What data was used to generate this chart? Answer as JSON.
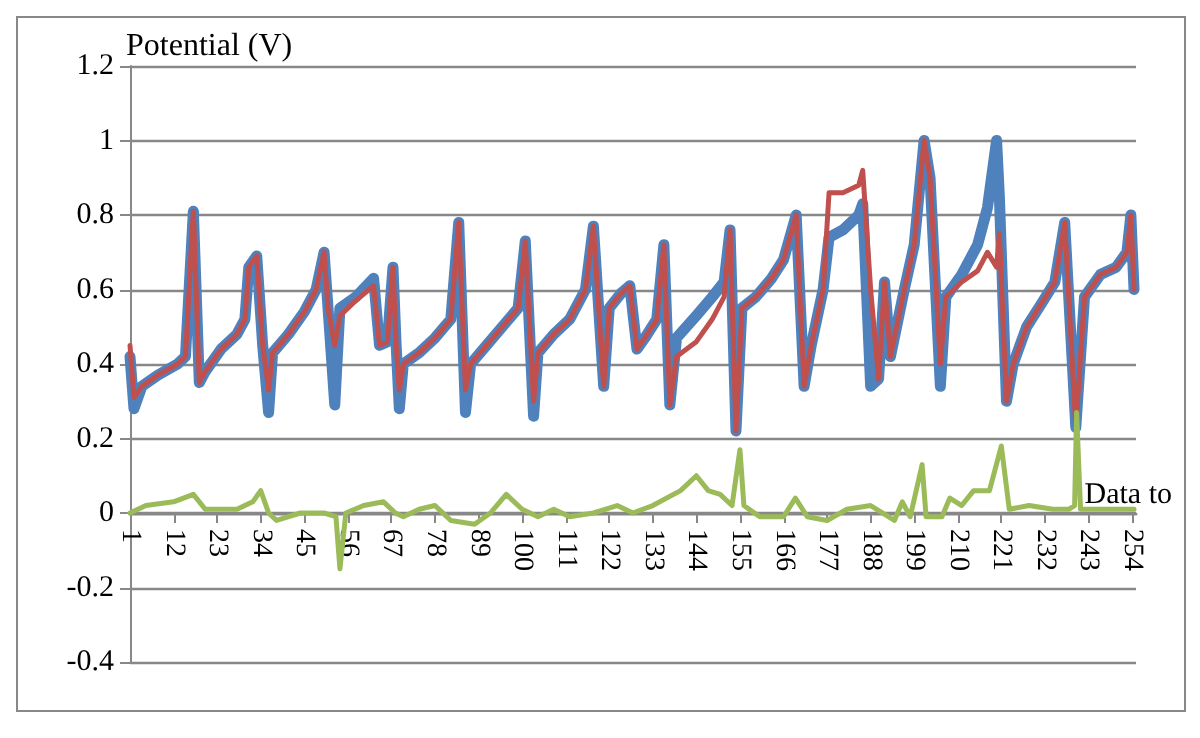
{
  "chart_data": {
    "type": "line",
    "ylabel": "Potential (V)",
    "annotations": [
      "Data to"
    ],
    "xlim": [
      1,
      255
    ],
    "xticks": [
      1,
      12,
      23,
      34,
      45,
      56,
      67,
      78,
      89,
      100,
      111,
      122,
      133,
      144,
      155,
      166,
      177,
      188,
      199,
      210,
      221,
      232,
      243,
      254
    ],
    "ylim": [
      -0.4,
      1.2
    ],
    "yticks": [
      -0.4,
      -0.2,
      0,
      0.2,
      0.4,
      0.6,
      0.8,
      1,
      1.2
    ],
    "grid": "y",
    "marker": "none",
    "line_style": "solid",
    "series": [
      {
        "color": "#4f81bd",
        "x": [
          1,
          2,
          4,
          8,
          13,
          15,
          17,
          18.5,
          20,
          24,
          28,
          30,
          31,
          33,
          34.5,
          36,
          37,
          41,
          45,
          48,
          50,
          51,
          52.7,
          54,
          58,
          62.5,
          64,
          66,
          67.4,
          68.2,
          69,
          70,
          74,
          78,
          82,
          84,
          85.7,
          87,
          91,
          95,
          99,
          100.8,
          102.9,
          104,
          108,
          112,
          116,
          118,
          120.6,
          122,
          125,
          127.2,
          129,
          131,
          134,
          135.8,
          137.3,
          139,
          144,
          148,
          151,
          152.5,
          154,
          155.5,
          159,
          163,
          166,
          169.2,
          171.2,
          173,
          176,
          177.5,
          181,
          185,
          186,
          188,
          190,
          191.5,
          193,
          196.5,
          199,
          201.5,
          203,
          205.6,
          207,
          211,
          215,
          217.5,
          219.8,
          220.5,
          222.3,
          224,
          227.4,
          231,
          234.5,
          237,
          239.8,
          242,
          246,
          250,
          252.7,
          253.7,
          254.5
        ],
        "values": [
          0.42,
          0.28,
          0.34,
          0.37,
          0.4,
          0.42,
          0.81,
          0.35,
          0.38,
          0.44,
          0.48,
          0.52,
          0.66,
          0.69,
          0.45,
          0.27,
          0.43,
          0.48,
          0.54,
          0.6,
          0.7,
          0.55,
          0.29,
          0.55,
          0.58,
          0.63,
          0.45,
          0.46,
          0.66,
          0.45,
          0.28,
          0.4,
          0.43,
          0.47,
          0.52,
          0.78,
          0.27,
          0.4,
          0.45,
          0.5,
          0.55,
          0.73,
          0.26,
          0.43,
          0.48,
          0.52,
          0.6,
          0.77,
          0.34,
          0.55,
          0.59,
          0.61,
          0.44,
          0.47,
          0.52,
          0.72,
          0.29,
          0.47,
          0.53,
          0.58,
          0.62,
          0.76,
          0.22,
          0.55,
          0.58,
          0.63,
          0.68,
          0.8,
          0.34,
          0.45,
          0.6,
          0.74,
          0.76,
          0.8,
          0.83,
          0.34,
          0.36,
          0.62,
          0.42,
          0.6,
          0.72,
          1.0,
          0.9,
          0.34,
          0.58,
          0.64,
          0.72,
          0.82,
          1.0,
          0.85,
          0.3,
          0.4,
          0.5,
          0.56,
          0.62,
          0.78,
          0.23,
          0.58,
          0.64,
          0.66,
          0.7,
          0.8,
          0.6
        ]
      },
      {
        "color": "#c0504d",
        "x": [
          1,
          2,
          4,
          8,
          13,
          15,
          17,
          18.5,
          20,
          24,
          28,
          30,
          31,
          33,
          34.5,
          36,
          37,
          41,
          45,
          48,
          50,
          51,
          52.7,
          54,
          58,
          62.5,
          64,
          66,
          67.4,
          68.2,
          69,
          70,
          74,
          78,
          82,
          84,
          85.7,
          87,
          91,
          95,
          99,
          100.8,
          102.9,
          104,
          108,
          112,
          116,
          118,
          120.6,
          122,
          125,
          127.2,
          129,
          131,
          134,
          135.8,
          137.3,
          139,
          144,
          148,
          151,
          152.5,
          154,
          155.5,
          159,
          163,
          166,
          169.2,
          171.2,
          173,
          176,
          177.5,
          181,
          185,
          186,
          188,
          190,
          191.5,
          193,
          196.5,
          199,
          201.5,
          203,
          205.6,
          207,
          211,
          215,
          217.5,
          219.8,
          220.5,
          222.3,
          224,
          227.4,
          231,
          234.5,
          237,
          239.8,
          242,
          246,
          250,
          252.7,
          253.7,
          254.5
        ],
        "values": [
          0.45,
          0.31,
          0.34,
          0.37,
          0.4,
          0.42,
          0.81,
          0.35,
          0.38,
          0.44,
          0.48,
          0.52,
          0.66,
          0.69,
          0.45,
          0.33,
          0.43,
          0.48,
          0.54,
          0.6,
          0.7,
          0.55,
          0.45,
          0.53,
          0.57,
          0.61,
          0.45,
          0.46,
          0.66,
          0.45,
          0.33,
          0.4,
          0.43,
          0.47,
          0.52,
          0.78,
          0.33,
          0.4,
          0.45,
          0.5,
          0.55,
          0.73,
          0.3,
          0.43,
          0.48,
          0.52,
          0.6,
          0.77,
          0.34,
          0.55,
          0.59,
          0.61,
          0.44,
          0.47,
          0.52,
          0.72,
          0.29,
          0.42,
          0.46,
          0.52,
          0.58,
          0.76,
          0.22,
          0.55,
          0.58,
          0.63,
          0.68,
          0.8,
          0.34,
          0.45,
          0.6,
          0.86,
          0.86,
          0.88,
          0.92,
          0.6,
          0.36,
          0.62,
          0.42,
          0.6,
          0.72,
          1.0,
          0.9,
          0.4,
          0.58,
          0.62,
          0.65,
          0.7,
          0.66,
          0.75,
          0.3,
          0.4,
          0.5,
          0.56,
          0.62,
          0.78,
          0.23,
          0.58,
          0.64,
          0.66,
          0.7,
          0.8,
          0.6
        ]
      },
      {
        "color": "#9bbb59",
        "x": [
          1,
          5,
          12,
          17,
          20,
          28,
          32,
          34,
          36,
          38,
          44,
          50,
          53,
          54,
          55.5,
          60,
          65,
          68,
          70,
          74,
          78,
          82,
          88,
          92,
          96,
          100,
          104,
          108,
          112,
          118,
          124,
          128,
          133,
          140,
          144,
          147,
          150,
          153,
          155,
          156,
          160,
          166,
          169,
          172,
          177,
          182,
          188,
          194,
          196,
          198,
          201,
          202,
          206,
          208,
          211,
          214,
          218,
          221,
          223,
          228,
          234,
          238,
          239.5,
          240,
          241,
          248,
          254.5
        ],
        "values": [
          0,
          0.02,
          0.03,
          0.05,
          0.01,
          0.01,
          0.03,
          0.06,
          0,
          -0.02,
          0,
          0,
          -0.01,
          -0.15,
          0,
          0.02,
          0.03,
          0,
          -0.01,
          0.01,
          0.02,
          -0.02,
          -0.03,
          0,
          0.05,
          0.01,
          -0.01,
          0.01,
          -0.01,
          0,
          0.02,
          0,
          0.02,
          0.06,
          0.1,
          0.06,
          0.05,
          0.02,
          0.17,
          0.02,
          -0.01,
          -0.01,
          0.04,
          -0.01,
          -0.02,
          0.01,
          0.02,
          -0.02,
          0.03,
          -0.01,
          0.13,
          -0.01,
          -0.01,
          0.04,
          0.02,
          0.06,
          0.06,
          0.18,
          0.01,
          0.02,
          0.01,
          0.01,
          0.02,
          0.27,
          0.01,
          0.01,
          0.01
        ]
      }
    ]
  }
}
